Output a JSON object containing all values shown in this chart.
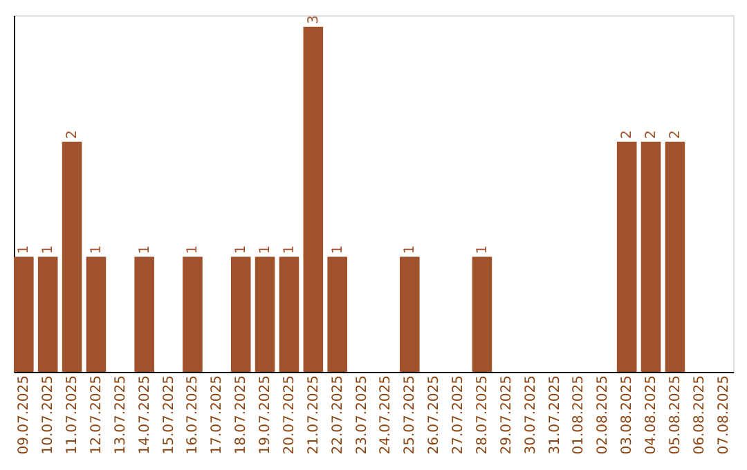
{
  "chart_data": {
    "type": "bar",
    "categories": [
      "09.07.2025",
      "10.07.2025",
      "11.07.2025",
      "12.07.2025",
      "13.07.2025",
      "14.07.2025",
      "15.07.2025",
      "16.07.2025",
      "17.07.2025",
      "18.07.2025",
      "19.07.2025",
      "20.07.2025",
      "21.07.2025",
      "22.07.2025",
      "23.07.2025",
      "24.07.2025",
      "25.07.2025",
      "26.07.2025",
      "27.07.2025",
      "28.07.2025",
      "29.07.2025",
      "30.07.2025",
      "31.07.2025",
      "01.08.2025",
      "02.08.2025",
      "03.08.2025",
      "04.08.2025",
      "05.08.2025",
      "06.08.2025",
      "07.08.2025"
    ],
    "values": [
      1,
      1,
      2,
      1,
      0,
      1,
      0,
      1,
      0,
      1,
      1,
      1,
      3,
      1,
      0,
      0,
      1,
      0,
      0,
      1,
      0,
      0,
      0,
      0,
      0,
      2,
      2,
      2,
      0,
      0
    ],
    "value_labels": [
      "1",
      "1",
      "2",
      "1",
      null,
      "1",
      null,
      "1",
      null,
      "1",
      "1",
      "1",
      "3",
      "1",
      null,
      null,
      "1",
      null,
      null,
      "1",
      null,
      null,
      null,
      null,
      null,
      "2",
      "2",
      "2",
      null,
      null
    ],
    "color": "#a0522d",
    "ylim": [
      0,
      3.1
    ],
    "tick_labels": "x",
    "grid": false
  }
}
